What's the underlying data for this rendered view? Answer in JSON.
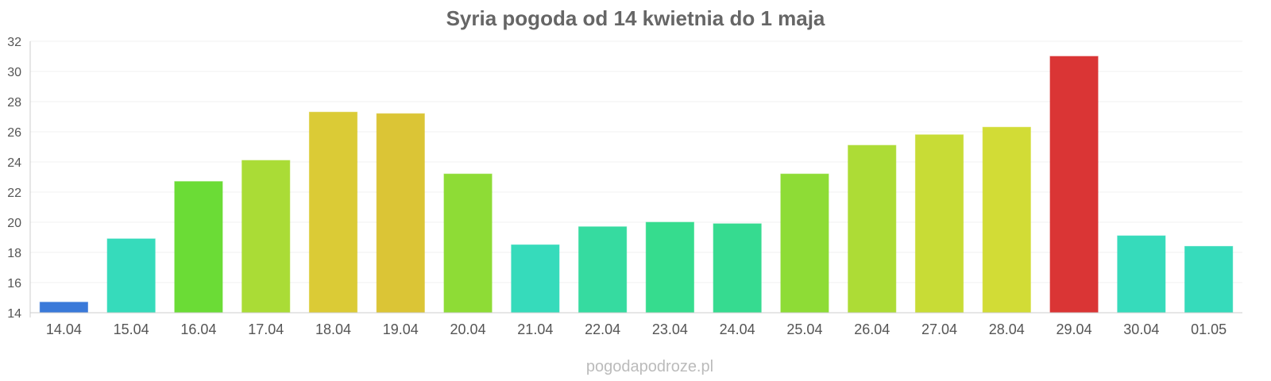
{
  "chart_data": {
    "type": "bar",
    "title": "Syria pogoda od 14 kwietnia do 1 maja",
    "xlabel": "",
    "ylabel": "",
    "ylim": [
      14,
      32
    ],
    "y_ticks": [
      "14",
      "16",
      "18",
      "20",
      "22",
      "24",
      "26",
      "28",
      "30",
      "32"
    ],
    "grid": true,
    "legend": "none",
    "categories": [
      "14.04",
      "15.04",
      "16.04",
      "17.04",
      "18.04",
      "19.04",
      "20.04",
      "21.04",
      "22.04",
      "23.04",
      "24.04",
      "25.04",
      "26.04",
      "27.04",
      "28.04",
      "29.04",
      "30.04",
      "01.05"
    ],
    "values": [
      14.7,
      18.9,
      22.7,
      24.1,
      27.3,
      27.2,
      23.2,
      18.5,
      19.7,
      20.0,
      19.9,
      23.2,
      25.1,
      25.8,
      26.3,
      31.0,
      19.1,
      18.4
    ],
    "bar_colors": [
      "#3a79d9",
      "#36dbbb",
      "#6bdc36",
      "#aadc36",
      "#dbcb36",
      "#dbc536",
      "#8edc36",
      "#36dbbb",
      "#36dba0",
      "#36dc8e",
      "#36db90",
      "#8edc36",
      "#addc36",
      "#c8dc36",
      "#d2dc36",
      "#da3535",
      "#36dbbb",
      "#36dbbb"
    ]
  },
  "watermark": "pogodapodroze.pl"
}
